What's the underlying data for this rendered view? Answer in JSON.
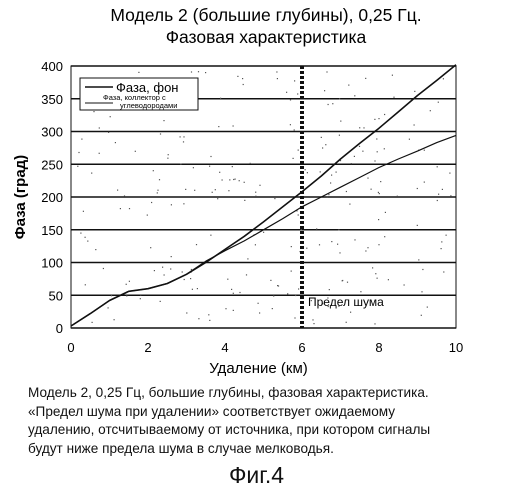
{
  "chart_data": {
    "type": "line",
    "title_lines": [
      "Модель 2 (большие глубины), 0,25 Гц.",
      "Фазовая характеристика"
    ],
    "xlabel": "Удаление (км)",
    "ylabel": "Фаза (град)",
    "xlim": [
      0,
      10
    ],
    "ylim": [
      0,
      400
    ],
    "xticks": [
      "0",
      "2",
      "4",
      "6",
      "8",
      "10"
    ],
    "yticks": [
      "0",
      "50",
      "100",
      "150",
      "200",
      "250",
      "300",
      "350",
      "400"
    ],
    "grid": "horizontal",
    "legend_position": "top-left",
    "series": [
      {
        "name": "Фаза, фон",
        "x": [
          0,
          0.5,
          1,
          1.5,
          2,
          2.5,
          3,
          3.5,
          4,
          4.5,
          5,
          5.5,
          6,
          6.5,
          7,
          7.5,
          8,
          8.5,
          9,
          9.5,
          10
        ],
        "y": [
          3,
          22,
          42,
          56,
          60,
          68,
          82,
          100,
          120,
          140,
          162,
          185,
          208,
          232,
          258,
          282,
          305,
          330,
          355,
          378,
          402
        ]
      },
      {
        "name": "Фаза, коллектор с углеводородами",
        "x": [
          0,
          0.5,
          1,
          1.5,
          2,
          2.5,
          3,
          3.5,
          4,
          4.5,
          5,
          5.5,
          6,
          6.5,
          7,
          7.5,
          8,
          8.5,
          9,
          9.5,
          10
        ],
        "y": [
          3,
          22,
          42,
          56,
          60,
          68,
          82,
          102,
          118,
          133,
          150,
          167,
          185,
          200,
          215,
          230,
          245,
          258,
          270,
          283,
          294
        ]
      }
    ],
    "vline": {
      "x": 6,
      "label": "Предел шума"
    }
  },
  "caption_lines": [
    "Модель 2, 0,25 Гц, большие глубины, фазовая характеристика.",
    "«Предел шума при удалении» соответствует ожидаемому",
    "удалению, отсчитываемому от источника, при котором сигналы",
    "будут ниже предела  шума в случае мелководья."
  ],
  "figure_label": "Фиг.4"
}
